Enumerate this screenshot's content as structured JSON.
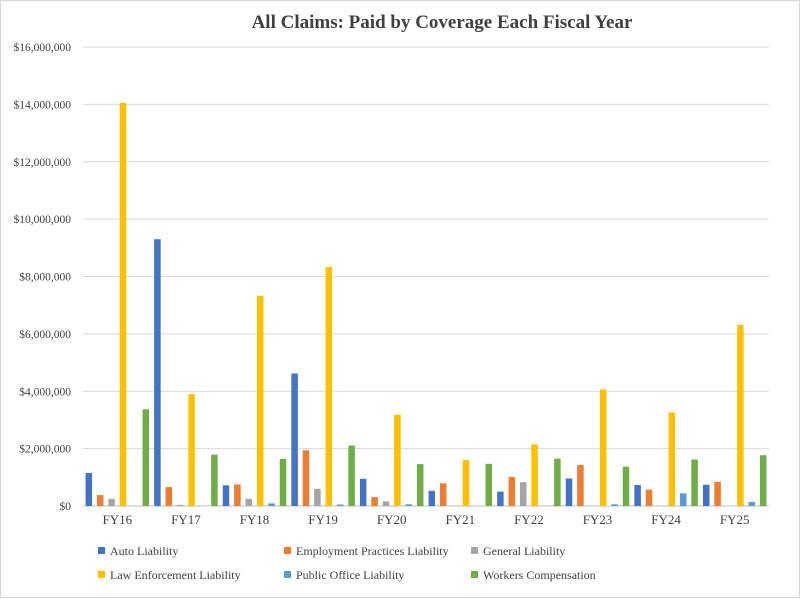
{
  "chart_data": {
    "type": "bar",
    "title": "All Claims: Paid by Coverage Each Fiscal Year",
    "xlabel": "",
    "ylabel": "",
    "ylim": [
      0,
      16000000
    ],
    "y_ticks": [
      {
        "value": 0,
        "label": "$0"
      },
      {
        "value": 2000000,
        "label": "$2,000,000"
      },
      {
        "value": 4000000,
        "label": "$4,000,000"
      },
      {
        "value": 6000000,
        "label": "$6,000,000"
      },
      {
        "value": 8000000,
        "label": "$8,000,000"
      },
      {
        "value": 10000000,
        "label": "$10,000,000"
      },
      {
        "value": 12000000,
        "label": "$12,000,000"
      },
      {
        "value": 14000000,
        "label": "$14,000,000"
      },
      {
        "value": 16000000,
        "label": "$16,000,000"
      }
    ],
    "grid": true,
    "legend_position": "bottom",
    "categories": [
      "FY16",
      "FY17",
      "FY18",
      "FY19",
      "FY20",
      "FY21",
      "FY22",
      "FY23",
      "FY24",
      "FY25"
    ],
    "series": [
      {
        "name": "Auto Liability",
        "color": "#4472c4",
        "values": [
          1150000,
          9300000,
          720000,
          4620000,
          950000,
          530000,
          500000,
          960000,
          730000,
          740000
        ]
      },
      {
        "name": "Employment Practices Liability",
        "color": "#ed7d31",
        "values": [
          380000,
          660000,
          750000,
          1940000,
          310000,
          790000,
          1010000,
          1430000,
          570000,
          840000
        ]
      },
      {
        "name": "General Liability",
        "color": "#a5a5a5",
        "values": [
          250000,
          40000,
          250000,
          600000,
          160000,
          0,
          830000,
          0,
          0,
          0
        ]
      },
      {
        "name": "Law Enforcement Liability",
        "color": "#ffc000",
        "values": [
          14050000,
          3900000,
          7330000,
          8330000,
          3180000,
          1600000,
          2150000,
          4060000,
          3260000,
          6310000
        ]
      },
      {
        "name": "Public Office Liability",
        "color": "#5b9bd5",
        "values": [
          0,
          0,
          90000,
          50000,
          60000,
          0,
          0,
          60000,
          440000,
          140000
        ]
      },
      {
        "name": "Workers Compensation",
        "color": "#70ad47",
        "values": [
          3370000,
          1790000,
          1640000,
          2110000,
          1460000,
          1470000,
          1650000,
          1370000,
          1620000,
          1770000
        ]
      }
    ]
  }
}
